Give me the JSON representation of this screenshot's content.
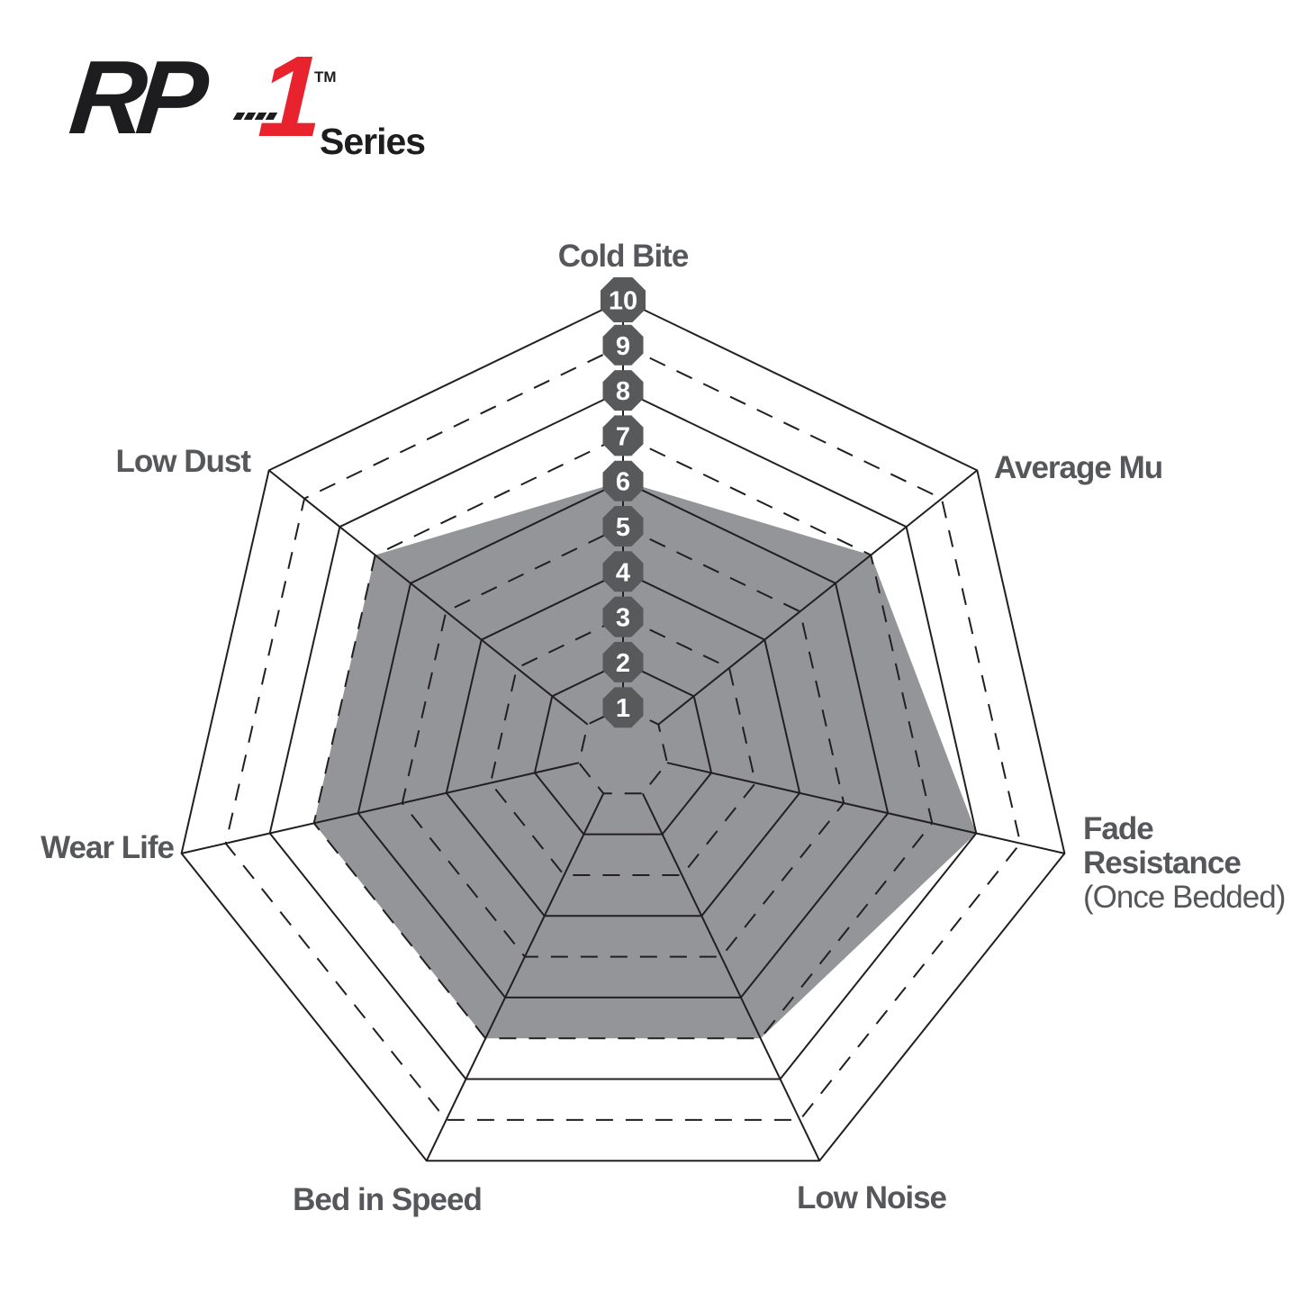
{
  "logo": {
    "rp": "RP",
    "one": "1",
    "tm": "TM",
    "series": "Series"
  },
  "labels": {
    "cold_bite": "Cold Bite",
    "average_mu": "Average Mu",
    "fade_line1": "Fade",
    "fade_line2": "Resistance",
    "fade_line3": "(Once Bedded)",
    "low_noise": "Low Noise",
    "bed_in_speed": "Bed in Speed",
    "wear_life": "Wear Life",
    "low_dust": "Low Dust"
  },
  "chart_data": {
    "type": "radar",
    "title": "RP-1 Series performance ratings",
    "categories": [
      "Cold Bite",
      "Average Mu",
      "Fade Resistance (Once Bedded)",
      "Low Noise",
      "Bed in Speed",
      "Wear Life",
      "Low Dust"
    ],
    "values": [
      6,
      7,
      8,
      7,
      7,
      7,
      7
    ],
    "axes_count": 7,
    "scale_min": 0,
    "scale_max": 10,
    "ticks": [
      1,
      2,
      3,
      4,
      5,
      6,
      7,
      8,
      9,
      10
    ],
    "solid_rings": [
      2,
      4,
      6,
      8,
      10
    ],
    "dashed_rings": [
      1,
      3,
      5,
      7,
      9
    ],
    "legend": "none",
    "grid": "on",
    "colors": {
      "fill": "#939598",
      "grid": "#231f20",
      "badge": "#58595b",
      "badge_text": "#ffffff",
      "label": "#56575b",
      "logo_red": "#e8232d",
      "logo_black": "#1d1d1f"
    }
  }
}
